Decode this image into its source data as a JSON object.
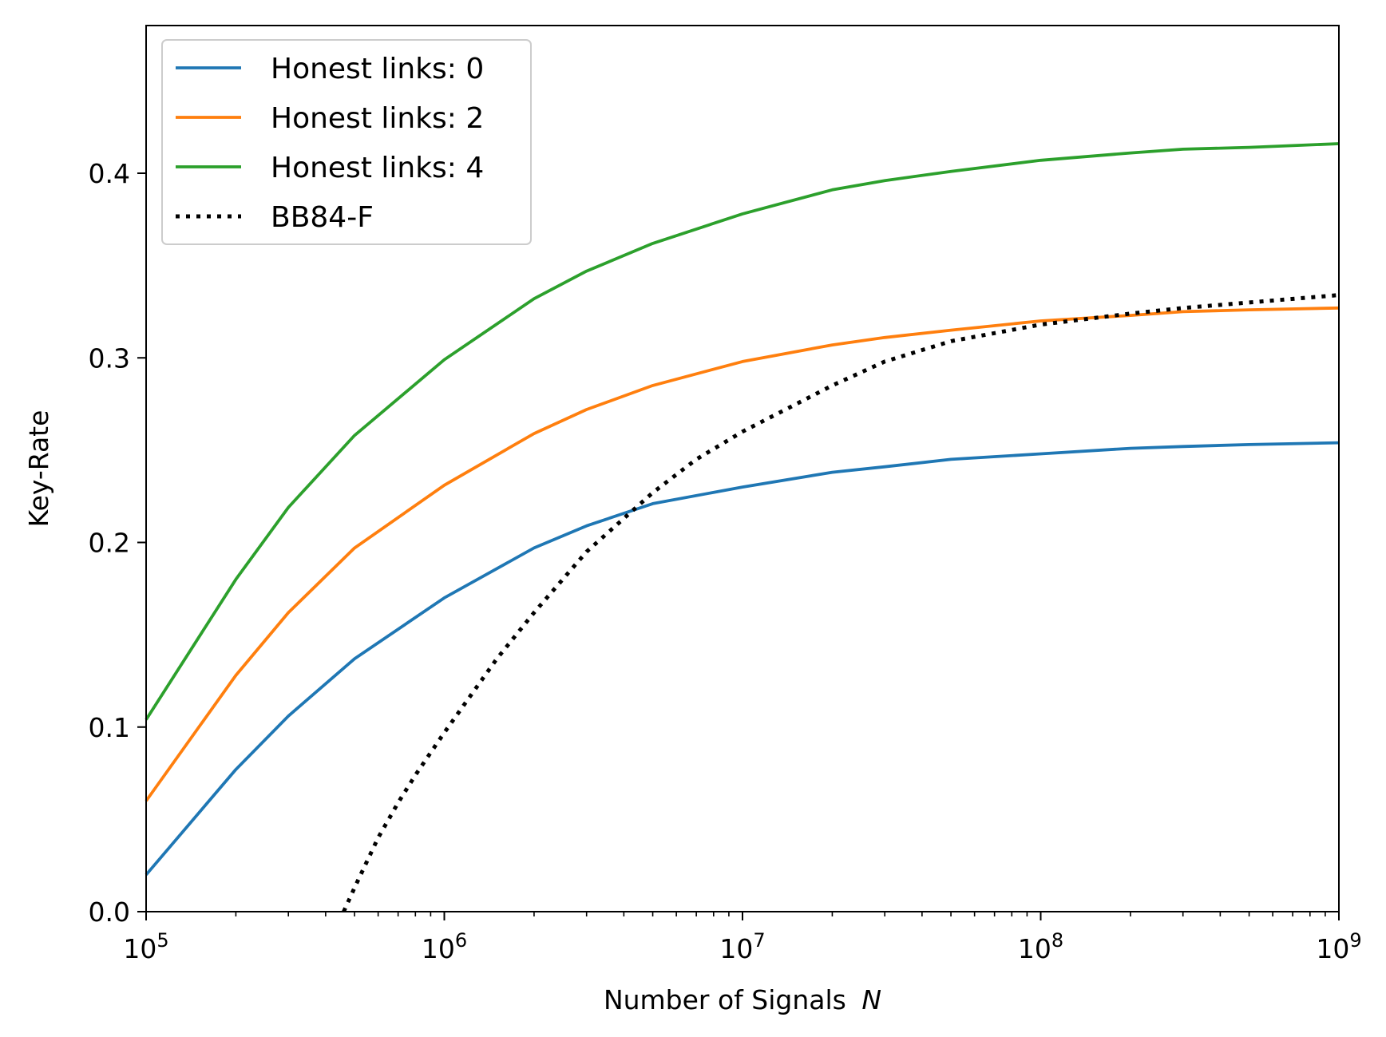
{
  "chart_data": {
    "type": "line",
    "xlabel": "Number of Signals",
    "xlabel_var": "N",
    "ylabel": "Key-Rate",
    "xscale": "log",
    "xlim": [
      100000,
      1000000000
    ],
    "ylim": [
      0,
      0.48
    ],
    "x_ticks": [
      {
        "value": 100000,
        "base": "10",
        "exp": "5"
      },
      {
        "value": 1000000,
        "base": "10",
        "exp": "6"
      },
      {
        "value": 10000000,
        "base": "10",
        "exp": "7"
      },
      {
        "value": 100000000,
        "base": "10",
        "exp": "8"
      },
      {
        "value": 1000000000,
        "base": "10",
        "exp": "9"
      }
    ],
    "y_ticks": [
      {
        "value": 0.0,
        "label": "0.0"
      },
      {
        "value": 0.1,
        "label": "0.1"
      },
      {
        "value": 0.2,
        "label": "0.2"
      },
      {
        "value": 0.3,
        "label": "0.3"
      },
      {
        "value": 0.4,
        "label": "0.4"
      }
    ],
    "grid": false,
    "legend_position": "top-left",
    "series": [
      {
        "name": "Honest links: 0",
        "color": "#1f77b4",
        "style": "solid",
        "x": [
          100000,
          200000,
          300000,
          500000,
          1000000,
          2000000,
          3000000,
          5000000,
          10000000,
          20000000,
          30000000,
          50000000,
          100000000,
          200000000,
          300000000,
          500000000,
          1000000000
        ],
        "y": [
          0.02,
          0.077,
          0.106,
          0.137,
          0.17,
          0.197,
          0.209,
          0.221,
          0.23,
          0.238,
          0.241,
          0.245,
          0.248,
          0.251,
          0.252,
          0.253,
          0.254
        ]
      },
      {
        "name": "Honest links: 2",
        "color": "#ff7f0e",
        "style": "solid",
        "x": [
          100000,
          200000,
          300000,
          500000,
          1000000,
          2000000,
          3000000,
          5000000,
          10000000,
          20000000,
          30000000,
          50000000,
          100000000,
          200000000,
          300000000,
          500000000,
          1000000000
        ],
        "y": [
          0.06,
          0.128,
          0.162,
          0.197,
          0.231,
          0.259,
          0.272,
          0.285,
          0.298,
          0.307,
          0.311,
          0.315,
          0.32,
          0.323,
          0.325,
          0.326,
          0.327
        ]
      },
      {
        "name": "Honest links: 4",
        "color": "#2ca02c",
        "style": "solid",
        "x": [
          100000,
          200000,
          300000,
          500000,
          1000000,
          2000000,
          3000000,
          5000000,
          10000000,
          20000000,
          30000000,
          50000000,
          100000000,
          200000000,
          300000000,
          500000000,
          1000000000
        ],
        "y": [
          0.104,
          0.18,
          0.219,
          0.258,
          0.299,
          0.332,
          0.347,
          0.362,
          0.378,
          0.391,
          0.396,
          0.401,
          0.407,
          0.411,
          0.413,
          0.414,
          0.416
        ]
      },
      {
        "name": "BB84-F",
        "color": "#000000",
        "style": "dotted",
        "x": [
          460000,
          500000,
          600000,
          700000,
          800000,
          1000000,
          1500000,
          2000000,
          3000000,
          4000000,
          5000000,
          7000000,
          10000000,
          20000000,
          30000000,
          50000000,
          100000000,
          200000000,
          300000000,
          500000000,
          1000000000
        ],
        "y": [
          0.0,
          0.013,
          0.04,
          0.059,
          0.074,
          0.097,
          0.137,
          0.162,
          0.195,
          0.213,
          0.227,
          0.245,
          0.26,
          0.285,
          0.298,
          0.309,
          0.318,
          0.324,
          0.327,
          0.33,
          0.334
        ]
      }
    ]
  }
}
